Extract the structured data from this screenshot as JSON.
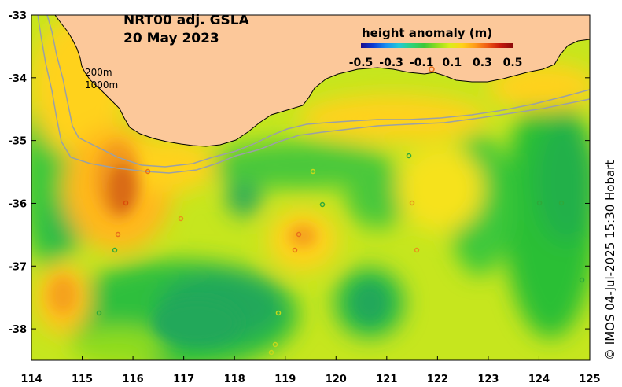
{
  "title": {
    "line1": "NRT00 adj. GSLA",
    "line2": "20 May 2023"
  },
  "colorbar": {
    "label": "height anomaly (m)",
    "ticks": [
      "-0.5",
      "-0.3",
      "-0.1",
      "0.1",
      "0.3",
      "0.5"
    ],
    "colors": [
      "#1a0a8c",
      "#0b3fd6",
      "#1a8ff0",
      "#22c8d8",
      "#2ed27a",
      "#3ec83a",
      "#8fdc1e",
      "#d9ee1a",
      "#ffd21a",
      "#ff9d1a",
      "#ef5a14",
      "#c81a0c",
      "#8c0a0a"
    ]
  },
  "bathymetry_labels": [
    "200m",
    "1000m"
  ],
  "credit": "© IMOS 04-Jul-2025 15:30 Hobart",
  "axes": {
    "x_ticks": [
      "114",
      "115",
      "116",
      "117",
      "118",
      "119",
      "120",
      "121",
      "122",
      "123",
      "124",
      "125"
    ],
    "y_ticks": [
      "-33",
      "-34",
      "-35",
      "-36",
      "-37",
      "-38"
    ],
    "xlim": [
      114,
      125
    ],
    "ylim": [
      -38.5,
      -33
    ]
  },
  "colors": {
    "land": "#fcc89a",
    "ocean_base": "#c6e61e",
    "bathy": "#9aa0a6"
  }
}
